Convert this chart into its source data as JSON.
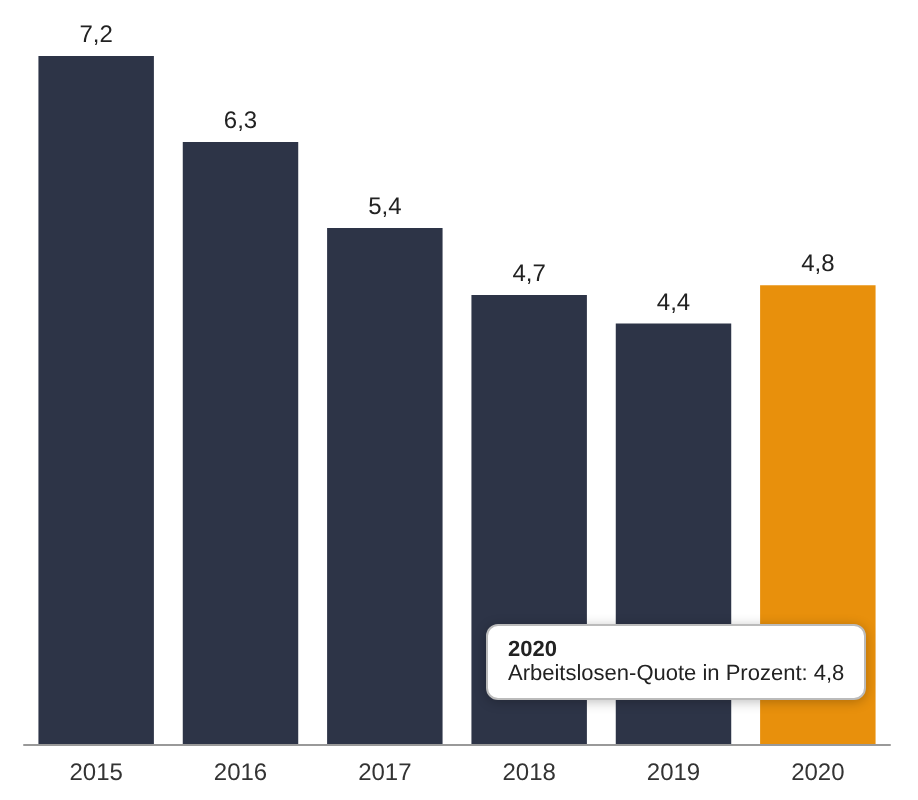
{
  "chart_data": {
    "type": "bar",
    "categories": [
      "2015",
      "2016",
      "2017",
      "2018",
      "2019",
      "2020"
    ],
    "values": [
      7.2,
      6.3,
      5.4,
      4.7,
      4.4,
      4.8
    ],
    "colors": [
      "#2d3447",
      "#2d3447",
      "#2d3447",
      "#2d3447",
      "#2d3447",
      "#e8900c"
    ],
    "value_labels": [
      "7,2",
      "6,3",
      "5,4",
      "4,7",
      "4,4",
      "4,8"
    ],
    "annotations": [
      "2020",
      "Arbeitslosen-Quote in Prozent: 4,8"
    ]
  }
}
